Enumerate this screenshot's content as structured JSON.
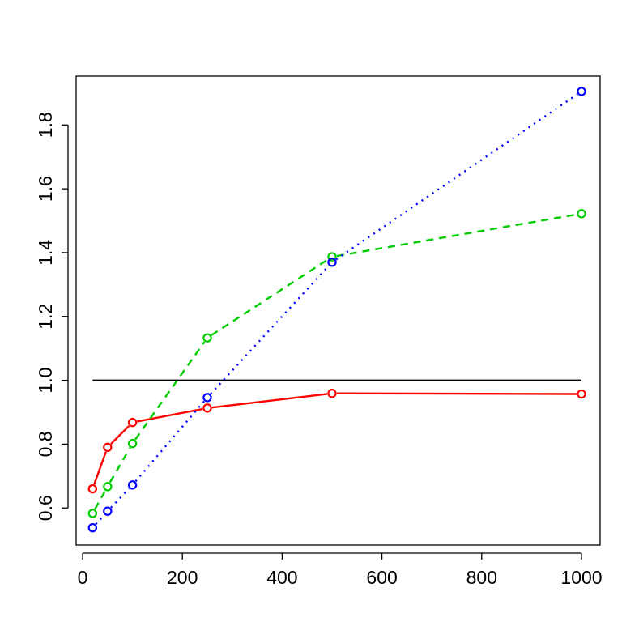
{
  "chart_data": {
    "type": "line",
    "title": "",
    "xlabel": "",
    "ylabel": "",
    "xlim": [
      0,
      1000
    ],
    "ylim": [
      0.5,
      1.9
    ],
    "x_ticks": [
      0,
      200,
      400,
      600,
      800,
      1000
    ],
    "y_ticks": [
      0.6,
      0.8,
      1.0,
      1.2,
      1.4,
      1.6,
      1.8
    ],
    "x_tick_labels": [
      "0",
      "200",
      "400",
      "600",
      "800",
      "1000"
    ],
    "y_tick_labels": [
      "0.6",
      "0.8",
      "1.0",
      "1.2",
      "1.4",
      "1.6",
      "1.8"
    ],
    "grid": false,
    "legend": "none",
    "reference_line": {
      "y": 1.0,
      "x": [
        20,
        1000
      ],
      "color": "#000000"
    },
    "x": [
      20,
      50,
      100,
      250,
      500,
      1000
    ],
    "series": [
      {
        "color": "#ff0000",
        "line_style": "solid",
        "marker": "open-circle",
        "values": [
          0.66,
          0.79,
          0.868,
          0.913,
          0.959,
          0.957
        ]
      },
      {
        "color": "#00cc00",
        "line_style": "dashed",
        "marker": "open-circle",
        "values": [
          0.583,
          0.667,
          0.802,
          1.133,
          1.387,
          1.522
        ]
      },
      {
        "color": "#0000ff",
        "line_style": "dotted",
        "marker": "open-circle",
        "values": [
          0.538,
          0.59,
          0.672,
          0.946,
          1.37,
          1.905
        ]
      }
    ]
  }
}
